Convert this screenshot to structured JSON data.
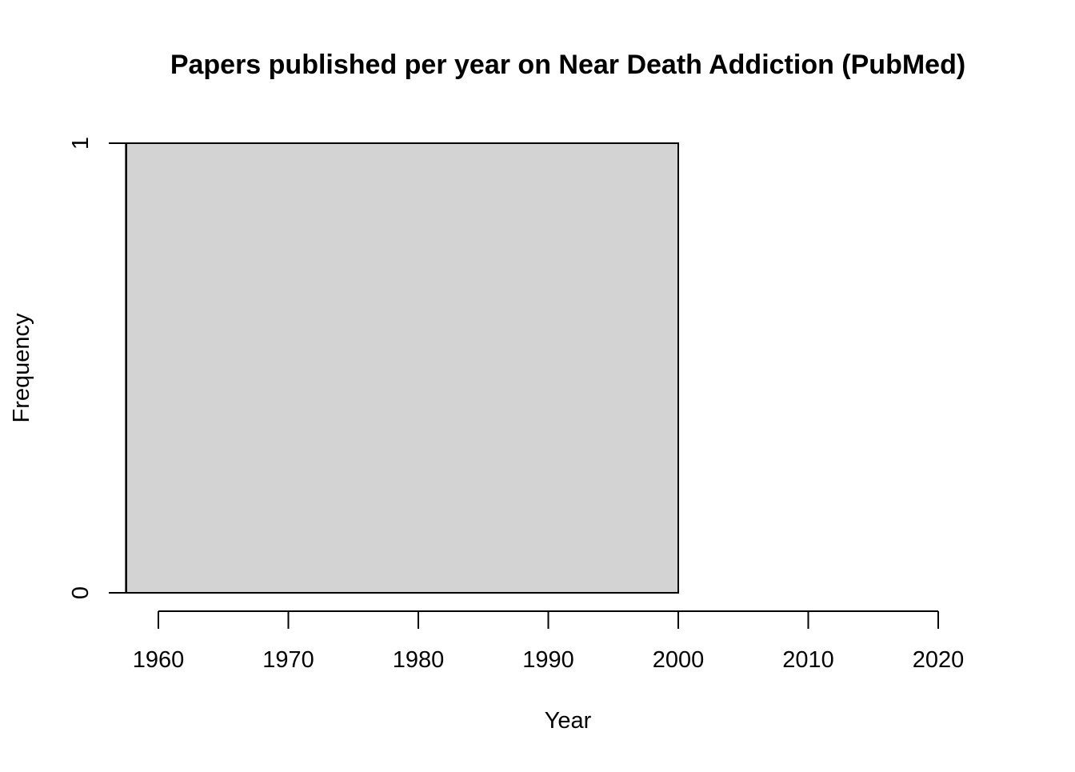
{
  "chart_data": {
    "type": "bar",
    "title": "Papers published per year on Near Death Addiction (PubMed)",
    "xlabel": "Year",
    "ylabel": "Frequency",
    "bins": [
      {
        "x_start": 1957.5,
        "x_end": 2000,
        "value": 1
      }
    ],
    "x_ticks": [
      1960,
      1970,
      1980,
      1990,
      2000,
      2010,
      2020
    ],
    "x_tick_labels": [
      "1960",
      "1970",
      "1980",
      "1990",
      "2000",
      "2010",
      "2020"
    ],
    "y_ticks": [
      0,
      1
    ],
    "y_tick_labels": [
      "0",
      "1"
    ],
    "xlim": [
      1957.5,
      2020
    ],
    "ylim": [
      0,
      1
    ],
    "grid": false,
    "legend": "none",
    "colors": {
      "bar_fill": "#d3d3d3",
      "bar_stroke": "#000000",
      "axis": "#000000"
    }
  }
}
